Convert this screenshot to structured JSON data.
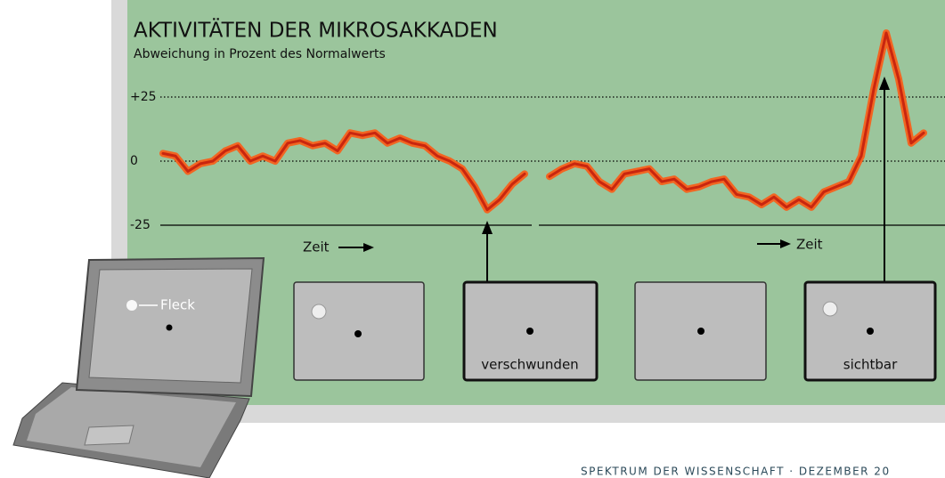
{
  "chart_data": {
    "type": "line",
    "title": "AKTIVITÄTEN DER MIKROSAKKADEN",
    "subtitle": "Abweichung in Prozent des Normalwerts",
    "values": [
      3,
      2,
      -4,
      -1,
      0,
      4,
      6,
      0,
      2,
      0,
      7,
      8,
      6,
      7,
      4,
      11,
      10,
      11,
      7,
      9,
      7,
      6,
      2,
      0,
      -3,
      -10,
      -19,
      -15,
      -9,
      -5,
      null,
      -6,
      -3,
      -1,
      -2,
      -8,
      -11,
      -5,
      -4,
      -3,
      -8,
      -7,
      -11,
      -10,
      -8,
      -7,
      -13,
      -14,
      -17,
      -14,
      -18,
      -15,
      -18,
      -12,
      -10,
      -8,
      2,
      28,
      50,
      32,
      7,
      11
    ],
    "color": "#f26522",
    "ylim": [
      -35,
      55
    ],
    "yticks": [
      {
        "value": 25,
        "label": "+25"
      },
      0,
      -25
    ],
    "grid": true,
    "time_labels": [
      "Zeit",
      "Zeit"
    ],
    "panel_labels": [
      "verschwunden",
      "sichtbar"
    ],
    "spot_label": "Fleck"
  },
  "footer": "SPEKTRUM DER WISSENSCHAFT · DEZEMBER 20"
}
